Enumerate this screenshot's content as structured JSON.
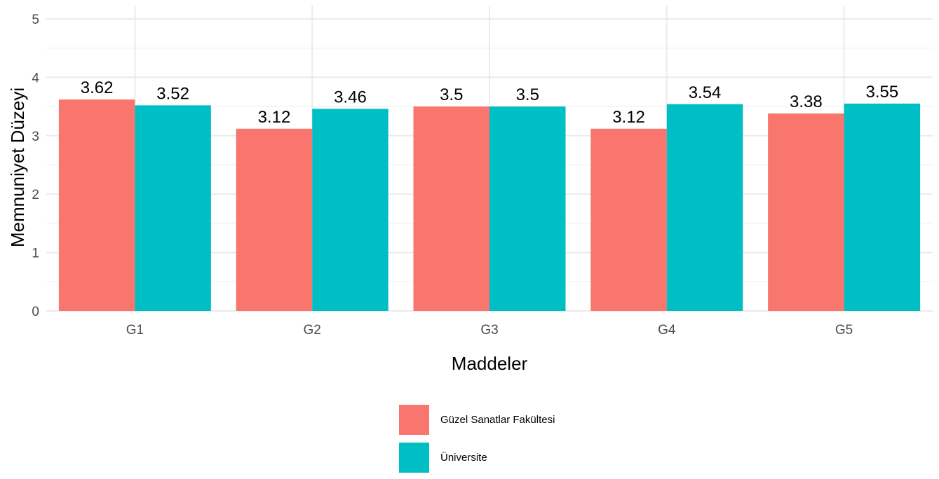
{
  "chart_data": {
    "type": "bar",
    "title": "",
    "xlabel": "Maddeler",
    "ylabel": "Memnuniyet Düzeyi",
    "ylim": [
      0,
      5
    ],
    "yticks": [
      0,
      1,
      2,
      3,
      4,
      5
    ],
    "grid": true,
    "legend_position": "bottom",
    "categories": [
      "G1",
      "G2",
      "G3",
      "G4",
      "G5"
    ],
    "series": [
      {
        "name": "Güzel Sanatlar Fakültesi",
        "color": "#F8766D",
        "values": [
          3.62,
          3.12,
          3.5,
          3.12,
          3.38
        ],
        "labels": [
          "3.62",
          "3.12",
          "3.5",
          "3.12",
          "3.38"
        ]
      },
      {
        "name": "Üniversite",
        "color": "#00BFC4",
        "values": [
          3.52,
          3.46,
          3.5,
          3.54,
          3.55
        ],
        "labels": [
          "3.52",
          "3.46",
          "3.5",
          "3.54",
          "3.55"
        ]
      }
    ]
  }
}
